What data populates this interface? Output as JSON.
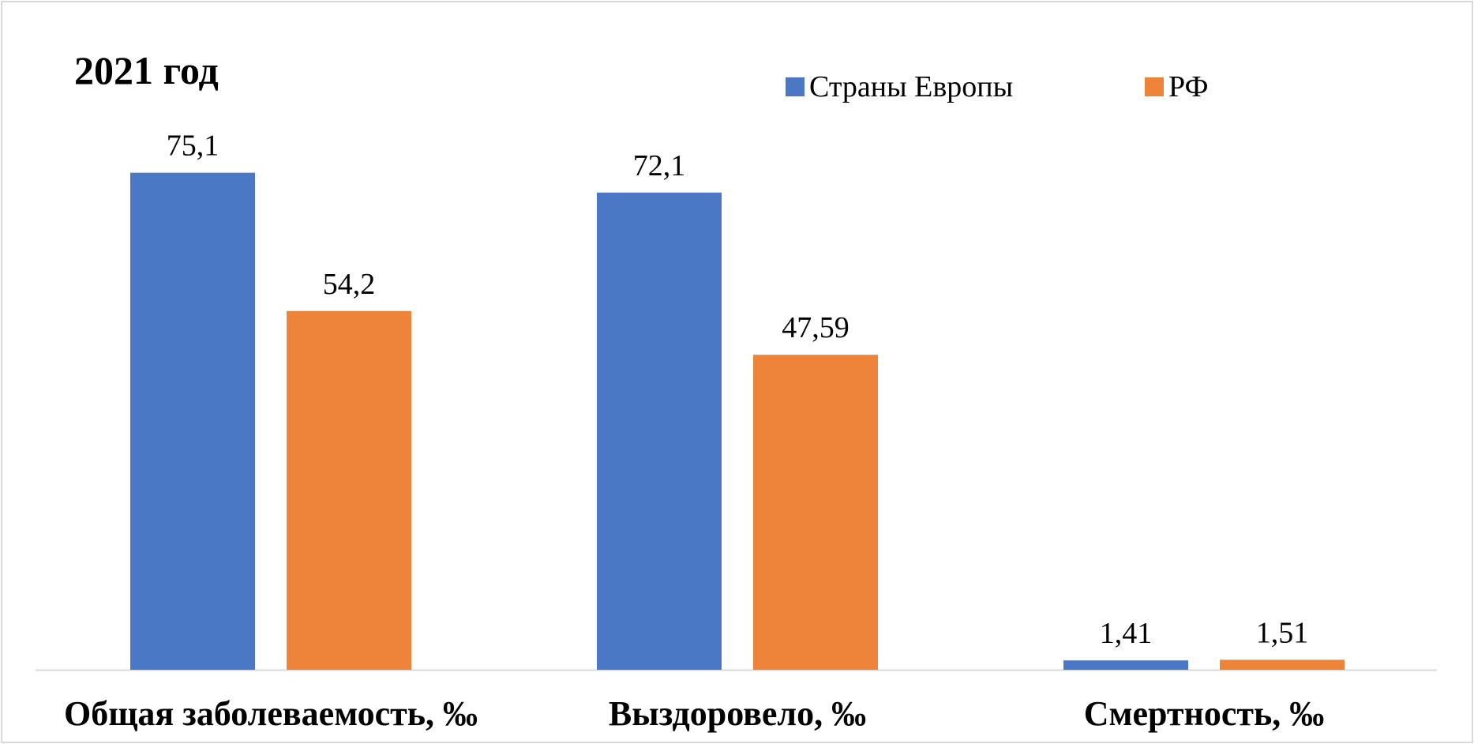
{
  "chart_data": {
    "type": "bar",
    "title": "2021 год",
    "categories": [
      "Общая заболеваемость, ‰",
      "Выздоровело, ‰",
      "Смертность, ‰"
    ],
    "series": [
      {
        "name": "Страны Европы",
        "color": "#4a78c5",
        "values": [
          75.1,
          72.1,
          1.41
        ],
        "labels": [
          "75,1",
          "72,1",
          "1,41"
        ]
      },
      {
        "name": "РФ",
        "color": "#ed843a",
        "values": [
          54.2,
          47.59,
          1.51
        ],
        "labels": [
          "54,2",
          "47,59",
          "1,51"
        ]
      }
    ],
    "xlabel": "",
    "ylabel": "",
    "ylim": [
      0,
      80
    ],
    "grid": false,
    "legend": "top-right",
    "axis_color": "#d9d9d9"
  }
}
